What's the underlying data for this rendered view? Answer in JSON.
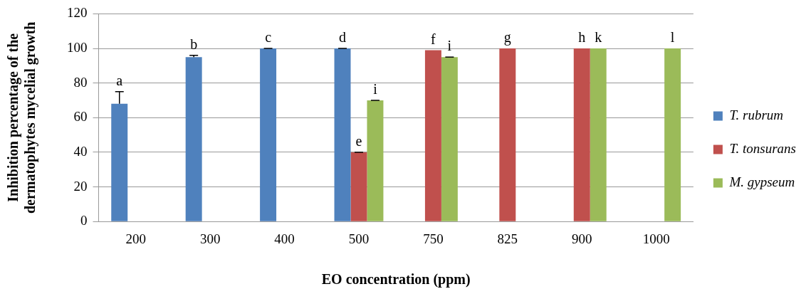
{
  "chart_data": {
    "type": "bar",
    "xlabel": "EO concentration (ppm)",
    "ylabel": "Inhibition percentage of the dermatophytes mycelial growth",
    "categories": [
      "200",
      "300",
      "400",
      "500",
      "750",
      "825",
      "900",
      "1000"
    ],
    "series": [
      {
        "name": "T. rubrum",
        "color": "#4f81bd",
        "values": [
          68,
          95,
          100,
          100,
          null,
          null,
          null,
          null
        ],
        "errors": [
          [
            68,
            75
          ],
          [
            95,
            96
          ],
          0,
          0,
          null,
          null,
          null,
          null
        ],
        "value_labels": [
          "a",
          "b",
          "c",
          "d",
          null,
          null,
          null,
          null
        ]
      },
      {
        "name": "T. tonsurans",
        "color": "#c0504d",
        "values": [
          null,
          null,
          null,
          40,
          99,
          100,
          100,
          null
        ],
        "errors": [
          null,
          null,
          null,
          0,
          null,
          null,
          null,
          null
        ],
        "value_labels": [
          null,
          null,
          null,
          "e",
          "f",
          "g",
          "h",
          null
        ]
      },
      {
        "name": "M. gypseum",
        "color": "#9bbb59",
        "values": [
          null,
          null,
          null,
          70,
          95,
          null,
          100,
          100
        ],
        "errors": [
          null,
          null,
          null,
          0,
          0,
          null,
          null,
          null
        ],
        "value_labels": [
          null,
          null,
          null,
          "i",
          "i",
          null,
          "k",
          "l"
        ]
      }
    ],
    "ylim": [
      0,
      120
    ],
    "yticks": [
      0,
      20,
      40,
      60,
      80,
      100,
      120
    ],
    "grid": "y",
    "legend": "right"
  }
}
